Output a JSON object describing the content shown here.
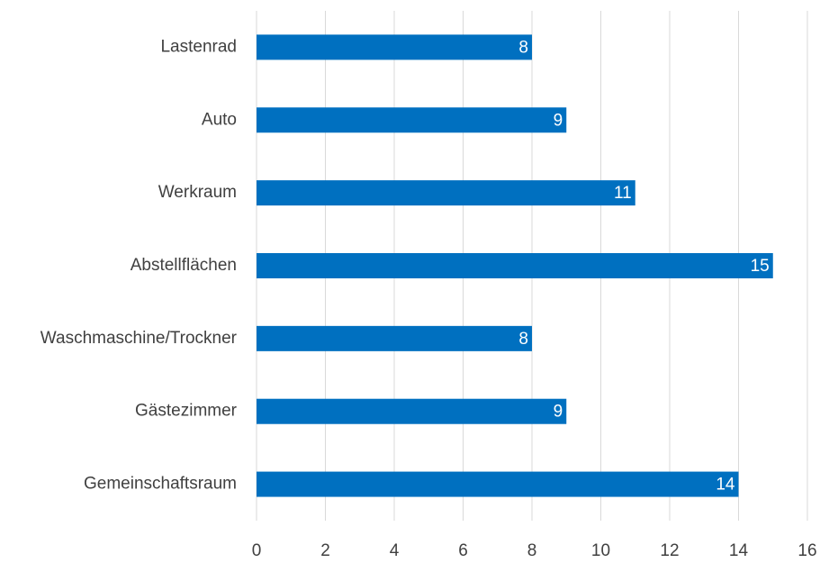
{
  "chart_data": {
    "type": "barh",
    "categories": [
      "Lastenrad",
      "Auto",
      "Werkraum",
      "Abstellflächen",
      "Waschmaschine/Trockner",
      "Gästezimmer",
      "Gemeinschaftsraum"
    ],
    "values": [
      8,
      9,
      11,
      15,
      8,
      9,
      14
    ],
    "color": "#0070c0",
    "xlim": [
      0,
      16
    ],
    "xticks": [
      0,
      2,
      4,
      6,
      8,
      10,
      12,
      14,
      16
    ],
    "grid": true
  }
}
